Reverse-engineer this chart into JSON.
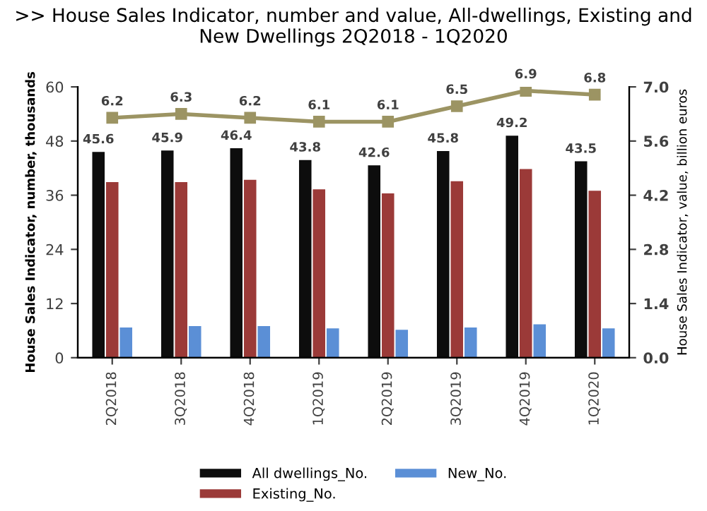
{
  "chart_data": {
    "type": "bar",
    "title": ">> House Sales Indicator, number and value, All-dwellings, Existing and New Dwellings 2Q2018 - 1Q2020",
    "ylabel": "House Sales Indicator, number, thousands",
    "y2label": "House Sales Indicator, value, billion euros",
    "categories": [
      "2Q2018",
      "3Q2018",
      "4Q2018",
      "1Q2019",
      "2Q2019",
      "3Q2019",
      "4Q2019",
      "1Q2020"
    ],
    "series": [
      {
        "name": "All dwellings_No.",
        "color": "#0d0d0d",
        "values": [
          45.6,
          45.9,
          46.4,
          43.8,
          42.6,
          45.8,
          49.2,
          43.5
        ],
        "value_labels": [
          "45.6",
          "45.9",
          "46.4",
          "43.8",
          "42.6",
          "45.8",
          "49.2",
          "43.5"
        ]
      },
      {
        "name": "Existing_No.",
        "color": "#9b3a38",
        "values": [
          38.9,
          38.9,
          39.4,
          37.3,
          36.4,
          39.1,
          41.8,
          37.0
        ]
      },
      {
        "name": "New_No.",
        "color": "#5b8fd6",
        "values": [
          6.7,
          7.0,
          7.0,
          6.5,
          6.2,
          6.7,
          7.4,
          6.5
        ]
      },
      {
        "type": "line",
        "axis": "y2",
        "color": "#9c9463",
        "marker": "square",
        "values": [
          6.2,
          6.3,
          6.2,
          6.1,
          6.1,
          6.5,
          6.9,
          6.8
        ],
        "value_labels": [
          "6.2",
          "6.3",
          "6.2",
          "6.1",
          "6.1",
          "6.5",
          "6.9",
          "6.8"
        ]
      }
    ],
    "ylim": [
      0,
      60
    ],
    "yticks": [
      0,
      12,
      24,
      36,
      48,
      60
    ],
    "y2lim": [
      0,
      7
    ],
    "y2ticks": [
      {
        "value": 0,
        "label": "0.0"
      },
      {
        "value": 1.4,
        "label": "1.4"
      },
      {
        "value": 2.8,
        "label": "2.8"
      },
      {
        "value": 4.2,
        "label": "4.2"
      },
      {
        "value": 5.6,
        "label": "5.6"
      },
      {
        "value": 7,
        "label": "7.0"
      }
    ],
    "grid": false,
    "legend": "bottom"
  }
}
